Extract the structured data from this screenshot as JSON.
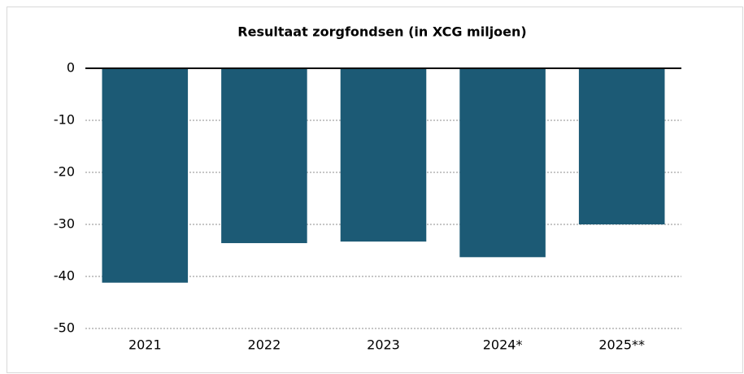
{
  "chart_data": {
    "type": "bar",
    "title": "Resultaat zorgfondsen (in XCG miljoen)",
    "categories": [
      "2021",
      "2022",
      "2023",
      "2024*",
      "2025**"
    ],
    "values": [
      -41.2,
      -33.6,
      -33.3,
      -36.3,
      -30
    ],
    "color": "#1c5a75",
    "ylim": [
      -50,
      0
    ],
    "yticks": [
      0,
      -10,
      -20,
      -30,
      -40,
      -50
    ],
    "grid": true
  }
}
